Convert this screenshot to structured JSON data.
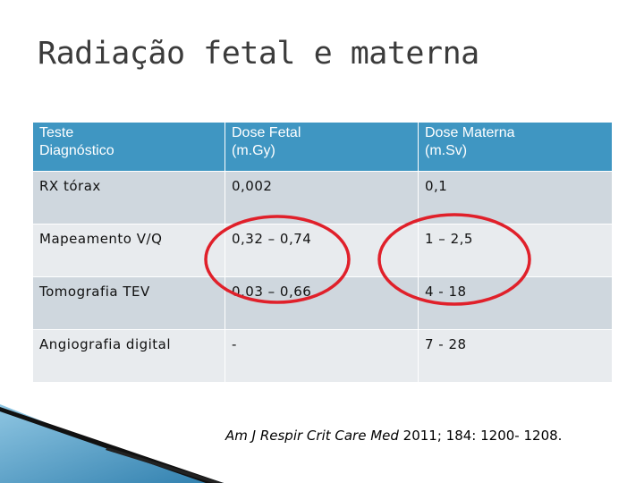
{
  "slide": {
    "title": "Radiação fetal e materna"
  },
  "table": {
    "headers": [
      "Teste Diagnóstico",
      "Dose Fetal (m.Gy)",
      "Dose Materna (m.Sv)"
    ],
    "header_lines": [
      [
        "Teste",
        "Diagnóstico"
      ],
      [
        "Dose Fetal",
        "(m.Gy)"
      ],
      [
        "Dose Materna",
        "(m.Sv)"
      ]
    ],
    "rows": [
      [
        "RX tórax",
        "0,002",
        "0,1"
      ],
      [
        "Mapeamento V/Q",
        "0,32 – 0,74",
        "1 – 2,5"
      ],
      [
        "Tomografia TEV",
        "0,03 – 0,66",
        "4 - 18"
      ],
      [
        "Angiografia digital",
        "-",
        "7 - 28"
      ]
    ]
  },
  "citation": {
    "journal": "Am J Respir Crit Care Med",
    "details": " 2011; 184: 1200- 1208."
  },
  "colors": {
    "header_bg": "#3f96c2",
    "row_dark": "#cfd7de",
    "row_light": "#e8ebee",
    "highlight_oval": "#e0202a"
  }
}
